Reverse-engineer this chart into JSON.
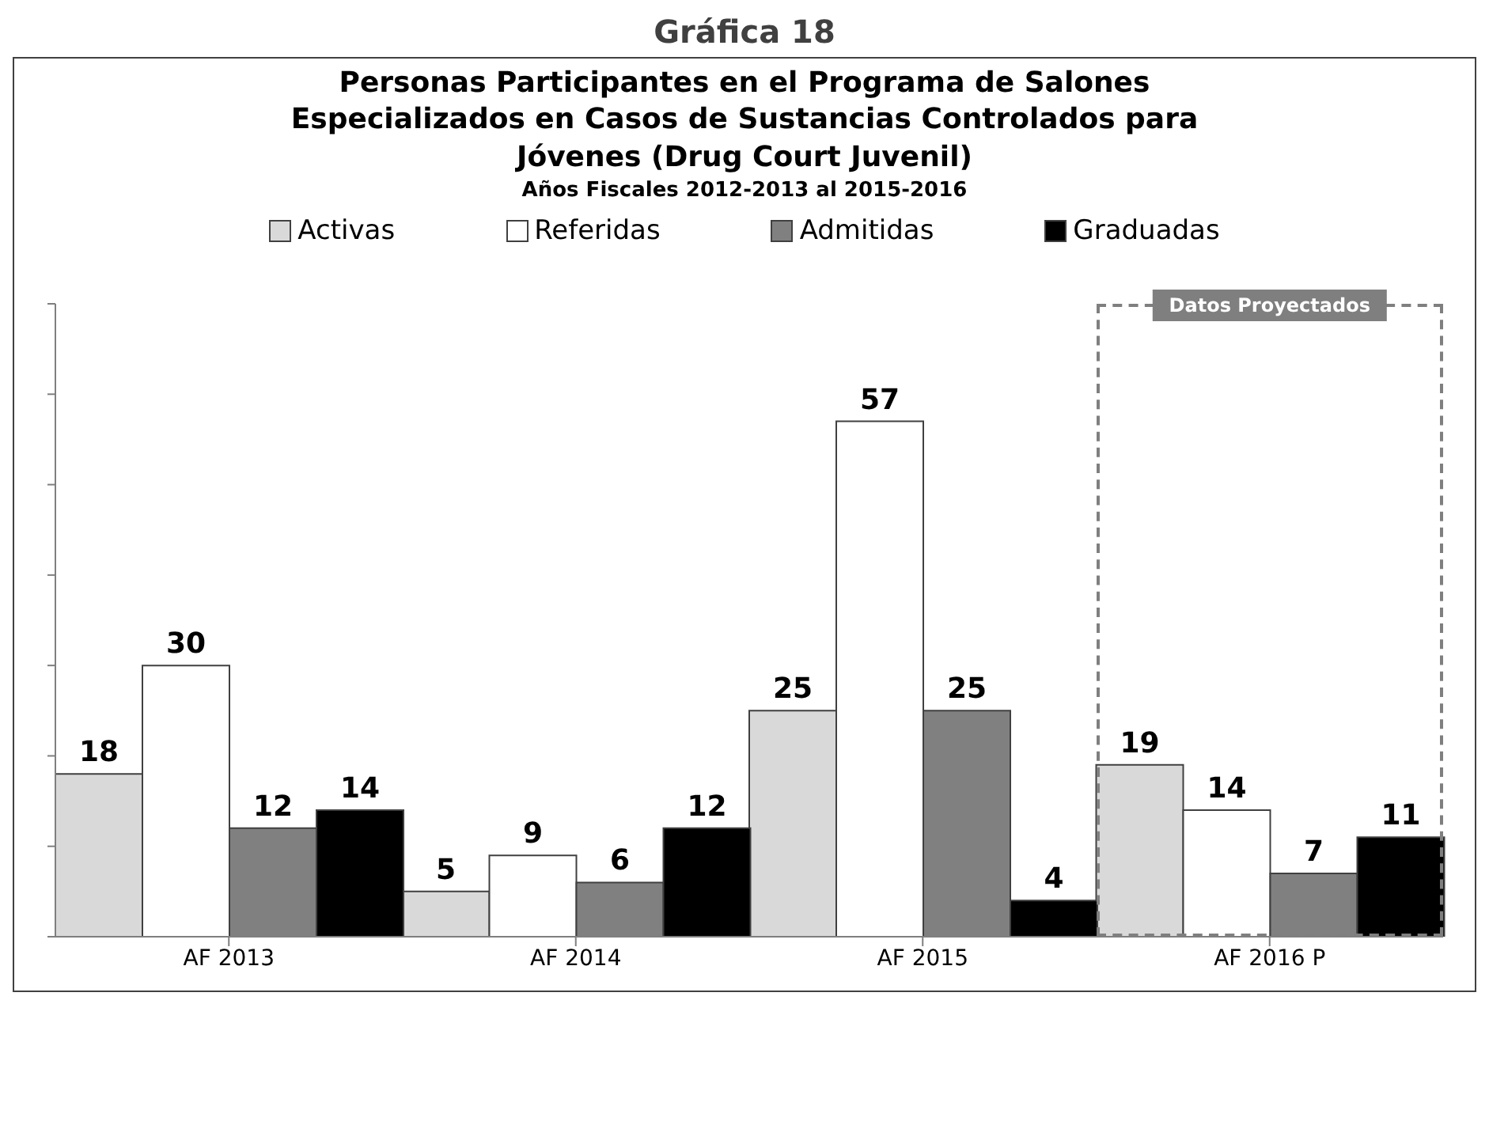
{
  "chart_data": {
    "type": "bar",
    "title": "Personas Participantes en el Programa de Salones Especializados en Casos de Sustancias Controlados para Jóvenes (Drug Court Juvenil)",
    "subtitle": "Años Fiscales 2012-2013 al 2015-2016",
    "annotations": [
      "Gráfica 18",
      "Datos Proyectados"
    ],
    "categories": [
      "AF 2013",
      "AF 2014",
      "AF 2015",
      "AF 2016 P"
    ],
    "series": [
      {
        "name": "Activas",
        "color": "#d9d9d9",
        "values": [
          18,
          5,
          25,
          19
        ]
      },
      {
        "name": "Referidas",
        "color": "#ffffff",
        "values": [
          30,
          9,
          57,
          14
        ]
      },
      {
        "name": "Admitidas",
        "color": "#808080",
        "values": [
          12,
          6,
          25,
          7
        ]
      },
      {
        "name": "Graduadas",
        "color": "#000000",
        "values": [
          14,
          12,
          4,
          11
        ]
      }
    ],
    "ylim": [
      0,
      70
    ],
    "yticks": [
      {
        "value": 0,
        "label": null
      },
      {
        "value": 10,
        "label": null
      },
      {
        "value": 20,
        "label": null
      },
      {
        "value": 30,
        "label": null
      },
      {
        "value": 40,
        "label": null
      },
      {
        "value": 50,
        "label": null
      },
      {
        "value": 60,
        "label": null
      },
      {
        "value": 70,
        "label": null
      }
    ],
    "tick_labels": "x",
    "data_labels": true,
    "legend": "top"
  }
}
